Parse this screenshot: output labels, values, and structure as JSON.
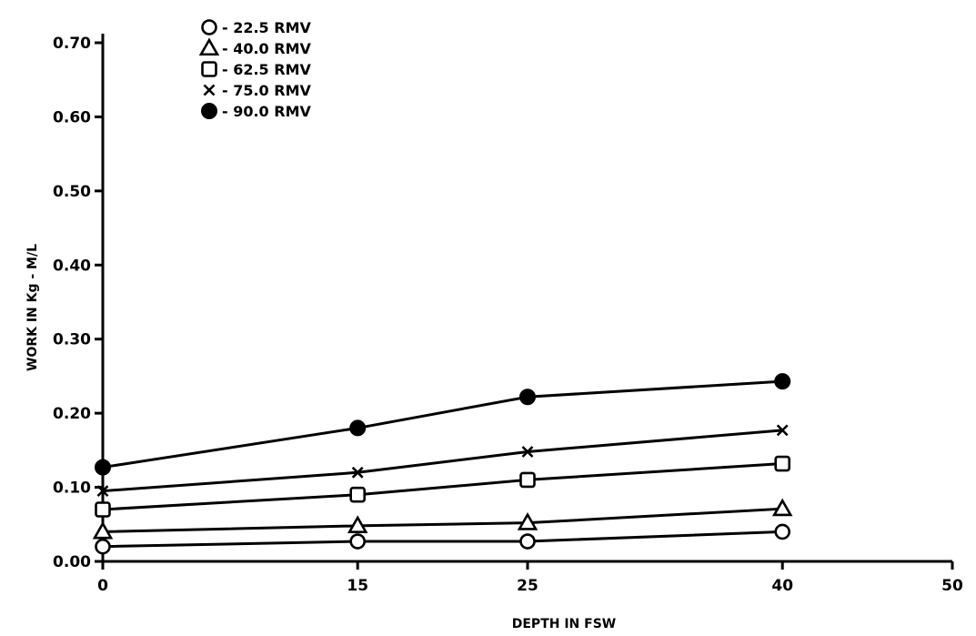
{
  "chart_data": {
    "type": "line",
    "title": "",
    "xlabel": "DEPTH IN FSW",
    "ylabel": "WORK IN Kg - M/L",
    "xlim": [
      0,
      50
    ],
    "ylim": [
      0,
      0.7
    ],
    "x_ticks": [
      0,
      15,
      25,
      40,
      50
    ],
    "x_tick_labels": [
      "0",
      "15",
      "25",
      "40",
      "50"
    ],
    "y_ticks": [
      0,
      0.1,
      0.2,
      0.3,
      0.4,
      0.5,
      0.6,
      0.7
    ],
    "y_tick_labels": [
      "0.00",
      "0.10",
      "0.20",
      "0.30",
      "0.40",
      "0.50",
      "0.60",
      "0.70"
    ],
    "grid": false,
    "legend_position": "top-left",
    "x": [
      0,
      15,
      25,
      40
    ],
    "series": [
      {
        "name": "22.5 RMV",
        "marker": "open-circle",
        "values": [
          0.02,
          0.027,
          0.027,
          0.04
        ]
      },
      {
        "name": "40.0 RMV",
        "marker": "open-triangle",
        "values": [
          0.04,
          0.048,
          0.052,
          0.071
        ]
      },
      {
        "name": "62.5 RMV",
        "marker": "open-square",
        "values": [
          0.07,
          0.09,
          0.11,
          0.132
        ]
      },
      {
        "name": "75.0 RMV",
        "marker": "x",
        "values": [
          0.095,
          0.12,
          0.148,
          0.177
        ]
      },
      {
        "name": "90.0 RMV",
        "marker": "filled-circle",
        "values": [
          0.127,
          0.18,
          0.222,
          0.243
        ]
      }
    ]
  }
}
